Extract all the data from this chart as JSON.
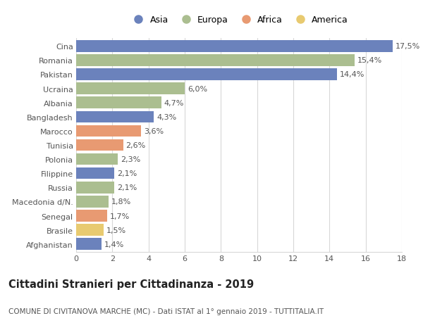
{
  "countries": [
    "Cina",
    "Romania",
    "Pakistan",
    "Ucraina",
    "Albania",
    "Bangladesh",
    "Marocco",
    "Tunisia",
    "Polonia",
    "Filippine",
    "Russia",
    "Macedonia d/N.",
    "Senegal",
    "Brasile",
    "Afghanistan"
  ],
  "values": [
    17.5,
    15.4,
    14.4,
    6.0,
    4.7,
    4.3,
    3.6,
    2.6,
    2.3,
    2.1,
    2.1,
    1.8,
    1.7,
    1.5,
    1.4
  ],
  "labels": [
    "17,5%",
    "15,4%",
    "14,4%",
    "6,0%",
    "4,7%",
    "4,3%",
    "3,6%",
    "2,6%",
    "2,3%",
    "2,1%",
    "2,1%",
    "1,8%",
    "1,7%",
    "1,5%",
    "1,4%"
  ],
  "continents": [
    "Asia",
    "Europa",
    "Asia",
    "Europa",
    "Europa",
    "Asia",
    "Africa",
    "Africa",
    "Europa",
    "Asia",
    "Europa",
    "Europa",
    "Africa",
    "America",
    "Asia"
  ],
  "colors": {
    "Asia": "#6b82bc",
    "Europa": "#abbe90",
    "Africa": "#e89a72",
    "America": "#e8ca70"
  },
  "legend_order": [
    "Asia",
    "Europa",
    "Africa",
    "America"
  ],
  "xlim": [
    0,
    18
  ],
  "xticks": [
    0,
    2,
    4,
    6,
    8,
    10,
    12,
    14,
    16,
    18
  ],
  "title1": "Cittadini Stranieri per Cittadinanza - 2019",
  "title2": "COMUNE DI CIVITANOVA MARCHE (MC) - Dati ISTAT al 1° gennaio 2019 - TUTTITALIA.IT",
  "background_color": "#ffffff",
  "grid_color": "#d8d8d8",
  "bar_height": 0.82,
  "label_fontsize": 8,
  "tick_label_fontsize": 8,
  "title1_fontsize": 10.5,
  "title2_fontsize": 7.5
}
